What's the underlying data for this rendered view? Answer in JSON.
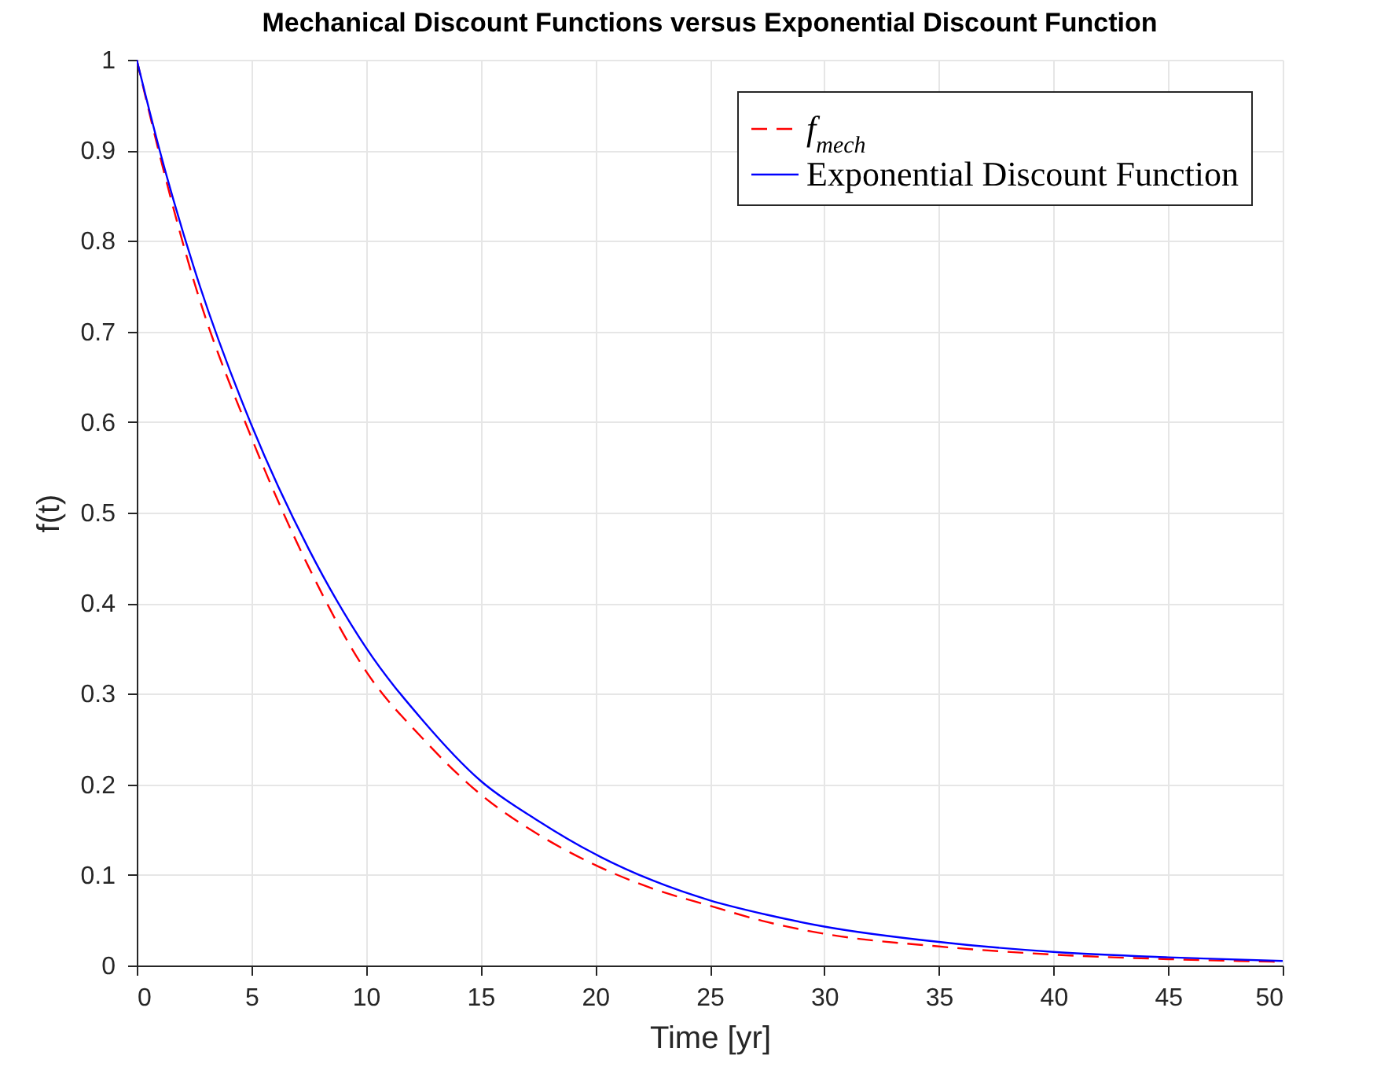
{
  "chart_data": {
    "type": "line",
    "title": "Mechanical Discount Functions versus Exponential Discount Function",
    "xlabel": "Time [yr]",
    "ylabel": "f(t)",
    "x": [
      0,
      1,
      2.5,
      5,
      7.5,
      10,
      12.5,
      15,
      17.5,
      20,
      22.5,
      25,
      27.5,
      30,
      35,
      40,
      45,
      50
    ],
    "series": [
      {
        "name": "f$_{mech}$",
        "color": "#ff0000",
        "line_style": "dashed",
        "values": [
          1,
          0.895,
          0.755,
          0.583,
          0.44,
          0.325,
          0.25,
          0.189,
          0.145,
          0.111,
          0.085,
          0.066,
          0.048,
          0.035,
          0.021,
          0.012,
          0.007,
          0.004
        ]
      },
      {
        "name": "Exponential Discount Function",
        "color": "#0000ff",
        "line_style": "solid",
        "values": [
          1,
          0.9,
          0.77,
          0.597,
          0.46,
          0.351,
          0.27,
          0.204,
          0.16,
          0.123,
          0.094,
          0.072,
          0.056,
          0.043,
          0.026,
          0.015,
          0.009,
          0.005
        ]
      }
    ],
    "xlim": [
      0,
      50
    ],
    "xticks": [
      0,
      5,
      10,
      15,
      20,
      25,
      30,
      35,
      40,
      45,
      50
    ],
    "ylim": [
      0,
      1
    ],
    "yticks": [
      0,
      0.1,
      0.2,
      0.3,
      0.4,
      0.5,
      0.6,
      0.7,
      0.8,
      0.9,
      1
    ],
    "grid": true,
    "legend": "top right"
  }
}
